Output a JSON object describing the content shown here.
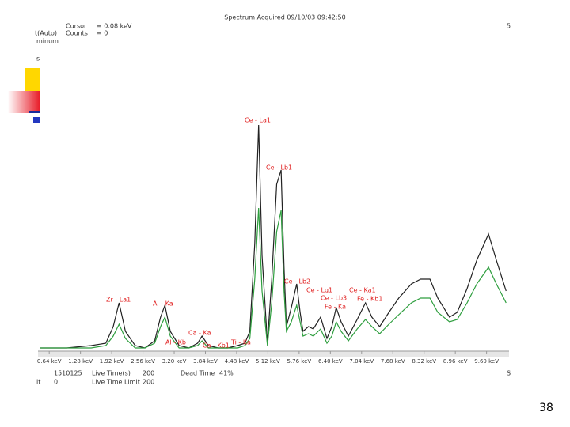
{
  "header": {
    "title": "Spectrum Acquired 09/10/03 09:42:50",
    "cursor_label": "Cursor",
    "cursor_value": "= 0.08 keV",
    "mode": "t(Auto)",
    "counts_label": "Counts",
    "counts_value": "= 0",
    "minimum": "minum",
    "side_s": "s",
    "right_mark": "5"
  },
  "chart_data": {
    "type": "line",
    "x": [
      0.45,
      1.0,
      1.5,
      1.8,
      1.95,
      2.07,
      2.2,
      2.4,
      2.6,
      2.8,
      2.92,
      3.01,
      3.12,
      3.3,
      3.5,
      3.68,
      3.77,
      3.9,
      4.1,
      4.3,
      4.5,
      4.65,
      4.75,
      4.85,
      4.93,
      5.0,
      5.11,
      5.2,
      5.3,
      5.39,
      5.45,
      5.5,
      5.6,
      5.71,
      5.78,
      5.84,
      5.95,
      6.05,
      6.2,
      6.33,
      6.43,
      6.52,
      6.62,
      6.77,
      6.95,
      7.12,
      7.25,
      7.41,
      7.6,
      7.8,
      8.06,
      8.25,
      8.44,
      8.6,
      8.84,
      9.0,
      9.2,
      9.4,
      9.64,
      9.8,
      10.0
    ],
    "series": [
      {
        "color": "#222222",
        "values": [
          1,
          1,
          2,
          3,
          10,
          20,
          8,
          2,
          1,
          4,
          14,
          19,
          8,
          2,
          1,
          3,
          6,
          2,
          1,
          1,
          2,
          3,
          8,
          45,
          95,
          40,
          3,
          30,
          70,
          76,
          35,
          10,
          18,
          28,
          16,
          8,
          10,
          9,
          14,
          5,
          10,
          18,
          12,
          6,
          13,
          20,
          14,
          10,
          16,
          22,
          28,
          30,
          30,
          22,
          14,
          16,
          26,
          38,
          49,
          38,
          25
        ]
      },
      {
        "color": "#2e9e3e",
        "values": [
          1,
          1,
          1,
          2,
          6,
          11,
          5,
          1,
          1,
          3,
          10,
          14,
          6,
          1,
          1,
          2,
          4,
          1,
          1,
          1,
          1,
          2,
          5,
          30,
          60,
          25,
          2,
          20,
          50,
          59,
          25,
          8,
          12,
          19,
          12,
          6,
          7,
          6,
          9,
          3,
          6,
          12,
          8,
          4,
          9,
          13,
          10,
          7,
          11,
          15,
          20,
          22,
          22,
          16,
          12,
          13,
          20,
          28,
          35,
          28,
          20
        ]
      }
    ],
    "xlim": [
      0.41,
      10.06
    ],
    "ylim": [
      0,
      100
    ],
    "xticks": [
      {
        "value": 0.64,
        "label": "0.64 keV"
      },
      {
        "value": 1.28,
        "label": "1.28 keV"
      },
      {
        "value": 1.92,
        "label": "1.92 keV"
      },
      {
        "value": 2.56,
        "label": "2.56 keV"
      },
      {
        "value": 3.2,
        "label": "3.20 keV"
      },
      {
        "value": 3.84,
        "label": "3.84 keV"
      },
      {
        "value": 4.48,
        "label": "4.48 keV"
      },
      {
        "value": 5.12,
        "label": "5.12 keV"
      },
      {
        "value": 5.76,
        "label": "5.76 keV"
      },
      {
        "value": 6.4,
        "label": "6.40 keV"
      },
      {
        "value": 7.04,
        "label": "7.04 keV"
      },
      {
        "value": 7.68,
        "label": "7.68 keV"
      },
      {
        "value": 8.32,
        "label": "8.32 keV"
      },
      {
        "value": 8.96,
        "label": "8.96 keV"
      },
      {
        "value": 9.6,
        "label": "9.60 keV"
      }
    ],
    "annotations": [
      "Zr - La1",
      "Al - Ka",
      "Al - Kb",
      "Ca - Ka",
      "Ca - Kb1",
      "Ti - Ka",
      "Ce - La1",
      "Ce - Lb1",
      "Ce - Lb2",
      "Ce - Lg1",
      "Ce - Lb3",
      "Fe - Ka",
      "Ce - Ka1",
      "Fe - Kb1"
    ],
    "annotation_color": "#e02020"
  },
  "footer": {
    "id": "1510125",
    "live_time_label": "Live Time(s)",
    "live_time": "200",
    "dead_time_label": "Dead Time",
    "dead_time": "41%",
    "limit_prefix": "it",
    "limit_zero": "0",
    "limit_label": "Live Time Limit",
    "limit_value": "200",
    "right_mark": "S"
  },
  "slide_number": "38"
}
